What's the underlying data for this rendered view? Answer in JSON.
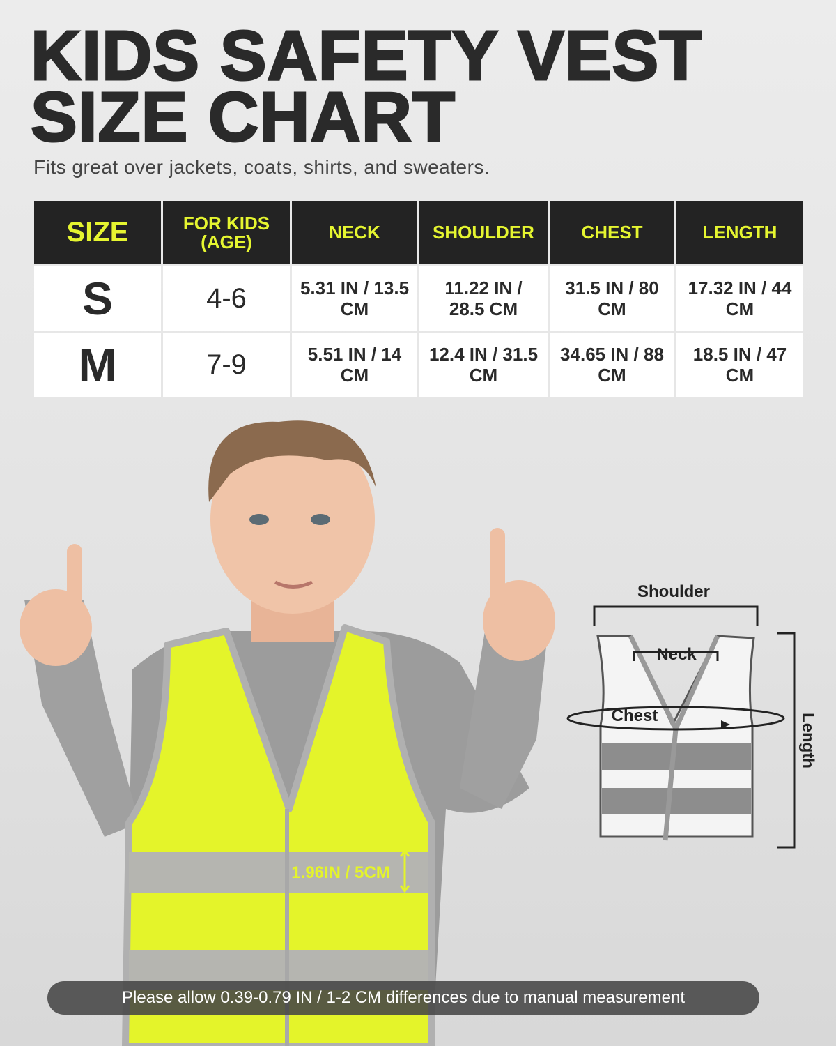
{
  "header": {
    "title_lines": [
      "KIDS SAFETY VEST",
      "SIZE CHART"
    ],
    "subtitle": "Fits great over jackets, coats, shirts, and sweaters."
  },
  "table": {
    "columns": [
      "SIZE",
      "FOR KIDS (AGE)",
      "NECK",
      "SHOULDER",
      "CHEST",
      "LENGTH"
    ],
    "rows": [
      [
        "S",
        "4-6",
        "5.31 IN / 13.5 CM",
        "11.22 IN / 28.5 CM",
        "31.5 IN / 80 CM",
        "17.32 IN / 44 CM"
      ],
      [
        "M",
        "7-9",
        "5.51 IN / 14 CM",
        "12.4 IN / 31.5 CM",
        "34.65 IN / 88 CM",
        "18.5 IN / 47 CM"
      ]
    ]
  },
  "diagram": {
    "shoulder": "Shoulder",
    "neck": "Neck",
    "chest": "Chest",
    "length": "Length",
    "stripe_width": "1.96IN / 5CM"
  },
  "note": "Please allow 0.39-0.79 IN / 1-2 CM differences due to manual measurement"
}
